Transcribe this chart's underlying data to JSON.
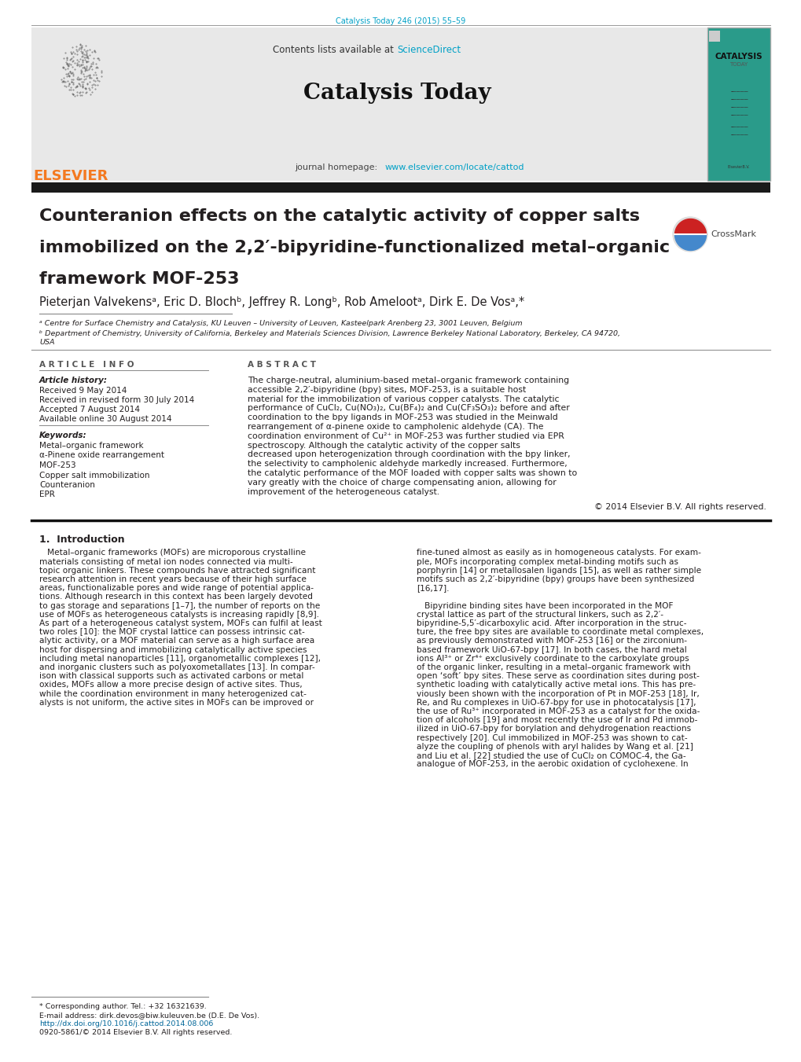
{
  "page_bg": "#ffffff",
  "top_citation": "Catalysis Today 246 (2015) 55–59",
  "citation_color": "#00a0c6",
  "header_bg": "#e0e0e0",
  "sciencedirect_color": "#00a0c6",
  "journal_url": "www.elsevier.com/locate/cattod",
  "journal_url_color": "#00a0c6",
  "elsevier_color": "#f47920",
  "article_title_line1": "Counteranion effects on the catalytic activity of copper salts",
  "article_title_line2": "immobilized on the 2,2′-bipyridine-functionalized metal–organic",
  "article_title_line3": "framework MOF-253",
  "authors": "Pieterjan Valvekensᵃ, Eric D. Blochᵇ, Jeffrey R. Longᵇ, Rob Amelootᵃ, Dirk E. De Vosᵃ,*",
  "affiliation_a": "ᵃ Centre for Surface Chemistry and Catalysis, KU Leuven – University of Leuven, Kasteelpark Arenberg 23, 3001 Leuven, Belgium",
  "affiliation_b1": "ᵇ Department of Chemistry, University of California, Berkeley and Materials Sciences Division, Lawrence Berkeley National Laboratory, Berkeley, CA 94720,",
  "affiliation_b2": "USA",
  "article_info_header": "A R T I C L E   I N F O",
  "abstract_header": "A B S T R A C T",
  "article_history_label": "Article history:",
  "received": "Received 9 May 2014",
  "revised": "Received in revised form 30 July 2014",
  "accepted": "Accepted 7 August 2014",
  "available": "Available online 30 August 2014",
  "keywords_label": "Keywords:",
  "keywords": [
    "Metal–organic framework",
    "α-Pinene oxide rearrangement",
    "MOF-253",
    "Copper salt immobilization",
    "Counteranion",
    "EPR"
  ],
  "abstract_text": "The charge-neutral, aluminium-based metal–organic framework containing accessible 2,2′-bipyridine (bpy) sites, MOF-253, is a suitable host material for the immobilization of various copper catalysts. The catalytic performance of CuCl₂, Cu(NO₃)₂, Cu(BF₄)₂ and Cu(CF₃SO₃)₂ before and after coordination to the bpy ligands in MOF-253 was studied in the Meinwald rearrangement of α-pinene oxide to campholenic aldehyde (CA). The coordination environment of Cu²⁺ in MOF-253 was further studied via EPR spectroscopy. Although the catalytic activity of the copper salts decreased upon heterogenization through coordination with the bpy linker, the selectivity to campholenic aldehyde markedly increased. Furthermore, the catalytic performance of the MOF loaded with copper salts was shown to vary greatly with the choice of charge compensating anion, allowing for improvement of the heterogeneous catalyst.",
  "copyright": "© 2014 Elsevier B.V. All rights reserved.",
  "intro_header": "1.  Introduction",
  "intro_col1_lines": [
    "   Metal–organic frameworks (MOFs) are microporous crystalline",
    "materials consisting of metal ion nodes connected via multi-",
    "topic organic linkers. These compounds have attracted significant",
    "research attention in recent years because of their high surface",
    "areas, functionalizable pores and wide range of potential applica-",
    "tions. Although research in this context has been largely devoted",
    "to gas storage and separations [1–7], the number of reports on the",
    "use of MOFs as heterogeneous catalysts is increasing rapidly [8,9].",
    "As part of a heterogeneous catalyst system, MOFs can fulfil at least",
    "two roles [10]: the MOF crystal lattice can possess intrinsic cat-",
    "alytic activity, or a MOF material can serve as a high surface area",
    "host for dispersing and immobilizing catalytically active species",
    "including metal nanoparticles [11], organometallic complexes [12],",
    "and inorganic clusters such as polyoxometallates [13]. In compar-",
    "ison with classical supports such as activated carbons or metal",
    "oxides, MOFs allow a more precise design of active sites. Thus,",
    "while the coordination environment in many heterogenized cat-",
    "alysts is not uniform, the active sites in MOFs can be improved or"
  ],
  "intro_col2_lines": [
    "fine-tuned almost as easily as in homogeneous catalysts. For exam-",
    "ple, MOFs incorporating complex metal-binding motifs such as",
    "porphyrin [14] or metallosalen ligands [15], as well as rather simple",
    "motifs such as 2,2′-bipyridine (bpy) groups have been synthesized",
    "[16,17].",
    "",
    "   Bipyridine binding sites have been incorporated in the MOF",
    "crystal lattice as part of the structural linkers, such as 2,2′-",
    "bipyridine-5,5′-dicarboxylic acid. After incorporation in the struc-",
    "ture, the free bpy sites are available to coordinate metal complexes,",
    "as previously demonstrated with MOF-253 [16] or the zirconium-",
    "based framework UiO-67-bpy [17]. In both cases, the hard metal",
    "ions Al³⁺ or Zr⁴⁺ exclusively coordinate to the carboxylate groups",
    "of the organic linker, resulting in a metal–organic framework with",
    "open ‘soft’ bpy sites. These serve as coordination sites during post-",
    "synthetic loading with catalytically active metal ions. This has pre-",
    "viously been shown with the incorporation of Pt in MOF-253 [18], Ir,",
    "Re, and Ru complexes in UiO-67-bpy for use in photocatalysis [17],",
    "the use of Ru³⁺ incorporated in MOF-253 as a catalyst for the oxida-",
    "tion of alcohols [19] and most recently the use of Ir and Pd immob-",
    "ilized in UiO-67-bpy for borylation and dehydrogenation reactions",
    "respectively [20]. CuI immobilized in MOF-253 was shown to cat-",
    "alyze the coupling of phenols with aryl halides by Wang et al. [21]",
    "and Liu et al. [22] studied the use of CuCl₂ on COMOC-4, the Ga-",
    "analogue of MOF-253, in the aerobic oxidation of cyclohexene. In"
  ],
  "footnote_star": "* Corresponding author. Tel.: +32 16321639.",
  "footnote_email": "E-mail address: dirk.devos@biw.kuleuven.be (D.E. De Vos).",
  "footnote_doi": "http://dx.doi.org/10.1016/j.cattod.2014.08.006",
  "footnote_issn": "0920-5861/© 2014 Elsevier B.V. All rights reserved.",
  "link_color": "#006699"
}
